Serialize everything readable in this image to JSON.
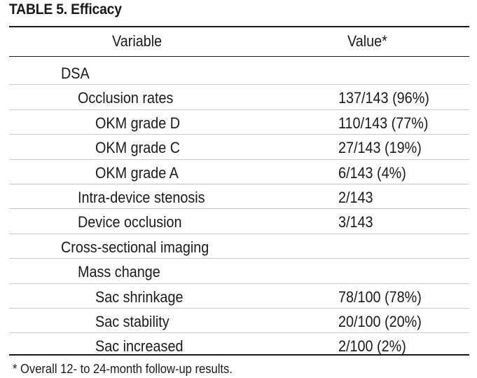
{
  "table": {
    "title": "TABLE 5. Efficacy",
    "columns": {
      "variable": "Variable",
      "value": "Value*"
    },
    "rows": [
      {
        "variable": "DSA",
        "value": "",
        "level": 0
      },
      {
        "variable": "Occlusion rates",
        "value": "137/143 (96%)",
        "level": 1
      },
      {
        "variable": "OKM grade D",
        "value": "110/143 (77%)",
        "level": 2
      },
      {
        "variable": "OKM grade C",
        "value": "27/143 (19%)",
        "level": 2
      },
      {
        "variable": "OKM grade A",
        "value": "6/143 (4%)",
        "level": 2
      },
      {
        "variable": "Intra-device stenosis",
        "value": "2/143",
        "level": 1
      },
      {
        "variable": "Device occlusion",
        "value": "3/143",
        "level": 1
      },
      {
        "variable": "Cross-sectional imaging",
        "value": "",
        "level": 0
      },
      {
        "variable": "Mass change",
        "value": "",
        "level": 1
      },
      {
        "variable": "Sac shrinkage",
        "value": "78/100 (78%)",
        "level": 2
      },
      {
        "variable": "Sac stability",
        "value": "20/100 (20%)",
        "level": 2
      },
      {
        "variable": "Sac increased",
        "value": "2/100 (2%)",
        "level": 2
      }
    ],
    "footnote": "* Overall 12- to 24-month follow-up results."
  }
}
